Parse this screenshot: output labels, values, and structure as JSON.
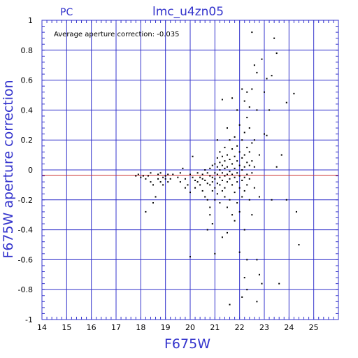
{
  "chart_data": {
    "type": "scatter",
    "title": "lmc_u4zn05",
    "subtitle": "PC",
    "annotation": "Average aperture correction:  -0.035",
    "xlabel": "F675W",
    "ylabel": "F675W aperture correction",
    "xlim": [
      14,
      26
    ],
    "ylim": [
      -1,
      1
    ],
    "x_ticks": [
      "14",
      "15",
      "16",
      "17",
      "18",
      "19",
      "20",
      "21",
      "22",
      "23",
      "24",
      "25"
    ],
    "y_ticks": [
      "1",
      "0.8",
      "0.6",
      "0.4",
      "0.2",
      "0",
      "-0.2",
      "-0.4",
      "-0.6",
      "-0.8",
      "-1"
    ],
    "grid": true,
    "reference_lines": [
      {
        "axis": "y",
        "value": 0,
        "color": "#3333cc"
      },
      {
        "axis": "y",
        "value": -0.035,
        "color": "#cc3333"
      }
    ],
    "colors": {
      "axis": "#3333cc",
      "grid": "#3333cc",
      "points": "#000000",
      "mean_line": "#cc3333"
    },
    "points": [
      [
        17.8,
        -0.04
      ],
      [
        17.9,
        -0.03
      ],
      [
        18.0,
        -0.05
      ],
      [
        18.1,
        -0.04
      ],
      [
        18.2,
        -0.06
      ],
      [
        18.2,
        -0.28
      ],
      [
        18.3,
        -0.04
      ],
      [
        18.4,
        -0.02
      ],
      [
        18.4,
        -0.08
      ],
      [
        18.5,
        -0.1
      ],
      [
        18.5,
        -0.22
      ],
      [
        18.6,
        -0.18
      ],
      [
        18.7,
        -0.03
      ],
      [
        18.7,
        -0.06
      ],
      [
        18.8,
        -0.02
      ],
      [
        18.8,
        -0.08
      ],
      [
        18.9,
        -0.05
      ],
      [
        18.9,
        -0.1
      ],
      [
        19.0,
        -0.04
      ],
      [
        19.0,
        -0.06
      ],
      [
        19.1,
        -0.03
      ],
      [
        19.1,
        -0.08
      ],
      [
        19.2,
        -0.06
      ],
      [
        19.3,
        -0.03
      ],
      [
        19.5,
        -0.05
      ],
      [
        19.6,
        -0.02
      ],
      [
        19.6,
        -0.08
      ],
      [
        19.7,
        0.01
      ],
      [
        19.8,
        -0.06
      ],
      [
        19.8,
        -0.12
      ],
      [
        19.9,
        -0.1
      ],
      [
        20.0,
        -0.03
      ],
      [
        20.0,
        -0.15
      ],
      [
        20.0,
        -0.58
      ],
      [
        20.1,
        0.09
      ],
      [
        20.1,
        -0.05
      ],
      [
        20.2,
        -0.07
      ],
      [
        20.2,
        -0.12
      ],
      [
        20.3,
        -0.02
      ],
      [
        20.3,
        -0.08
      ],
      [
        20.4,
        -0.05
      ],
      [
        20.4,
        -0.1
      ],
      [
        20.5,
        -0.03
      ],
      [
        20.5,
        -0.06
      ],
      [
        20.5,
        -0.14
      ],
      [
        20.6,
        0.0
      ],
      [
        20.6,
        -0.07
      ],
      [
        20.6,
        -0.18
      ],
      [
        20.7,
        -0.02
      ],
      [
        20.7,
        -0.09
      ],
      [
        20.7,
        -0.2
      ],
      [
        20.7,
        -0.4
      ],
      [
        20.8,
        0.01
      ],
      [
        20.8,
        -0.04
      ],
      [
        20.8,
        -0.1
      ],
      [
        20.8,
        -0.25
      ],
      [
        20.8,
        -0.3
      ],
      [
        20.9,
        0.03
      ],
      [
        20.9,
        -0.05
      ],
      [
        20.9,
        -0.08
      ],
      [
        20.9,
        -0.14
      ],
      [
        20.9,
        -0.36
      ],
      [
        21.0,
        0.04
      ],
      [
        21.0,
        -0.02
      ],
      [
        21.0,
        -0.06
      ],
      [
        21.0,
        -0.12
      ],
      [
        21.0,
        -0.2
      ],
      [
        21.0,
        -0.56
      ],
      [
        21.1,
        0.2
      ],
      [
        21.1,
        0.08
      ],
      [
        21.1,
        0.02
      ],
      [
        21.1,
        -0.03
      ],
      [
        21.1,
        -0.09
      ],
      [
        21.1,
        -0.16
      ],
      [
        21.2,
        0.12
      ],
      [
        21.2,
        0.05
      ],
      [
        21.2,
        0.0
      ],
      [
        21.2,
        -0.05
      ],
      [
        21.2,
        -0.1
      ],
      [
        21.2,
        -0.22
      ],
      [
        21.3,
        0.47
      ],
      [
        21.3,
        0.09
      ],
      [
        21.3,
        0.03
      ],
      [
        21.3,
        -0.02
      ],
      [
        21.3,
        -0.07
      ],
      [
        21.3,
        -0.14
      ],
      [
        21.3,
        -0.45
      ],
      [
        21.4,
        0.15
      ],
      [
        21.4,
        0.06
      ],
      [
        21.4,
        0.01
      ],
      [
        21.4,
        -0.04
      ],
      [
        21.4,
        -0.12
      ],
      [
        21.4,
        -0.18
      ],
      [
        21.5,
        0.28
      ],
      [
        21.5,
        0.1
      ],
      [
        21.5,
        0.02
      ],
      [
        21.5,
        -0.03
      ],
      [
        21.5,
        -0.08
      ],
      [
        21.5,
        -0.25
      ],
      [
        21.5,
        -0.42
      ],
      [
        21.6,
        0.2
      ],
      [
        21.6,
        0.07
      ],
      [
        21.6,
        -0.01
      ],
      [
        21.6,
        -0.06
      ],
      [
        21.6,
        -0.2
      ],
      [
        21.6,
        -0.9
      ],
      [
        21.7,
        0.48
      ],
      [
        21.7,
        0.14
      ],
      [
        21.7,
        0.04
      ],
      [
        21.7,
        -0.03
      ],
      [
        21.7,
        -0.1
      ],
      [
        21.7,
        -0.3
      ],
      [
        21.8,
        0.22
      ],
      [
        21.8,
        0.09
      ],
      [
        21.8,
        0.01
      ],
      [
        21.8,
        -0.05
      ],
      [
        21.8,
        -0.15
      ],
      [
        21.8,
        -0.34
      ],
      [
        21.9,
        0.4
      ],
      [
        21.9,
        0.16
      ],
      [
        21.9,
        0.06
      ],
      [
        21.9,
        -0.02
      ],
      [
        21.9,
        -0.08
      ],
      [
        21.9,
        -0.22
      ],
      [
        22.0,
        0.3
      ],
      [
        22.0,
        0.12
      ],
      [
        22.0,
        0.03
      ],
      [
        22.0,
        -0.04
      ],
      [
        22.0,
        -0.12
      ],
      [
        22.0,
        -0.28
      ],
      [
        22.0,
        -0.55
      ],
      [
        22.1,
        0.54
      ],
      [
        22.1,
        0.2
      ],
      [
        22.1,
        0.08
      ],
      [
        22.1,
        0.0
      ],
      [
        22.1,
        -0.07
      ],
      [
        22.1,
        -0.18
      ],
      [
        22.1,
        -0.85
      ],
      [
        22.2,
        0.46
      ],
      [
        22.2,
        0.25
      ],
      [
        22.2,
        0.1
      ],
      [
        22.2,
        0.02
      ],
      [
        22.2,
        -0.05
      ],
      [
        22.2,
        -0.14
      ],
      [
        22.2,
        -0.4
      ],
      [
        22.2,
        -0.72
      ],
      [
        22.3,
        0.52
      ],
      [
        22.3,
        0.35
      ],
      [
        22.3,
        0.15
      ],
      [
        22.3,
        0.05
      ],
      [
        22.3,
        -0.03
      ],
      [
        22.3,
        -0.1
      ],
      [
        22.3,
        -0.6
      ],
      [
        22.3,
        -0.8
      ],
      [
        22.4,
        0.42
      ],
      [
        22.4,
        0.28
      ],
      [
        22.4,
        0.12
      ],
      [
        22.4,
        0.03
      ],
      [
        22.4,
        -0.06
      ],
      [
        22.4,
        -0.2
      ],
      [
        22.5,
        0.92
      ],
      [
        22.5,
        0.54
      ],
      [
        22.5,
        0.18
      ],
      [
        22.5,
        0.06
      ],
      [
        22.5,
        -0.02
      ],
      [
        22.5,
        -0.3
      ],
      [
        22.6,
        0.7
      ],
      [
        22.6,
        0.2
      ],
      [
        22.6,
        0.02
      ],
      [
        22.6,
        -0.12
      ],
      [
        22.7,
        0.65
      ],
      [
        22.7,
        0.4
      ],
      [
        22.7,
        -0.6
      ],
      [
        22.7,
        -0.88
      ],
      [
        22.8,
        0.1
      ],
      [
        22.8,
        -0.18
      ],
      [
        22.8,
        -0.7
      ],
      [
        22.9,
        0.74
      ],
      [
        22.9,
        -0.76
      ],
      [
        23.0,
        0.52
      ],
      [
        23.0,
        0.24
      ],
      [
        23.1,
        0.23
      ],
      [
        23.1,
        0.61
      ],
      [
        23.2,
        0.4
      ],
      [
        23.3,
        0.63
      ],
      [
        23.3,
        -0.2
      ],
      [
        23.4,
        0.88
      ],
      [
        23.5,
        0.78
      ],
      [
        23.5,
        0.02
      ],
      [
        23.6,
        -0.76
      ],
      [
        23.7,
        0.1
      ],
      [
        23.9,
        0.45
      ],
      [
        23.9,
        -0.2
      ],
      [
        24.2,
        0.51
      ],
      [
        24.3,
        -0.28
      ],
      [
        24.4,
        -0.5
      ]
    ]
  }
}
